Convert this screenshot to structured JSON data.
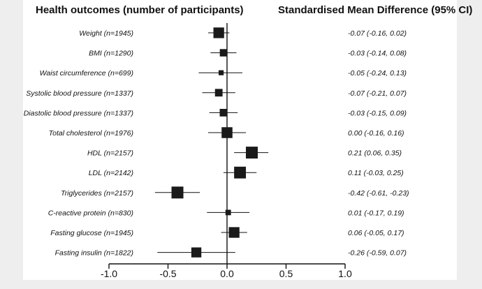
{
  "chart_data": {
    "type": "forest",
    "left_header": "Health outcomes (number of participants)",
    "right_header": "Standardised Mean Difference (95% CI)",
    "xlim": [
      -1.0,
      1.0
    ],
    "xticks": [
      "-1.0",
      "-0.5",
      "0.0",
      "0.5",
      "1.0"
    ],
    "rows": [
      {
        "label": "Weight (n=1945)",
        "n": 1945,
        "smd": -0.07,
        "lo": -0.16,
        "hi": 0.02,
        "ci_text": "-0.07 (-0.16, 0.02)"
      },
      {
        "label": "BMI (n=1290)",
        "n": 1290,
        "smd": -0.03,
        "lo": -0.14,
        "hi": 0.08,
        "ci_text": "-0.03 (-0.14, 0.08)"
      },
      {
        "label": "Waist circumference (n=699)",
        "n": 699,
        "smd": -0.05,
        "lo": -0.24,
        "hi": 0.13,
        "ci_text": "-0.05 (-0.24, 0.13)"
      },
      {
        "label": "Systolic blood pressure (n=1337)",
        "n": 1337,
        "smd": -0.07,
        "lo": -0.21,
        "hi": 0.07,
        "ci_text": "-0.07 (-0.21, 0.07)"
      },
      {
        "label": "Diastolic blood pressure (n=1337)",
        "n": 1337,
        "smd": -0.03,
        "lo": -0.15,
        "hi": 0.09,
        "ci_text": "-0.03 (-0.15, 0.09)"
      },
      {
        "label": "Total cholesterol (n=1976)",
        "n": 1976,
        "smd": 0.0,
        "lo": -0.16,
        "hi": 0.16,
        "ci_text": "0.00 (-0.16, 0.16)"
      },
      {
        "label": "HDL (n=2157)",
        "n": 2157,
        "smd": 0.21,
        "lo": 0.06,
        "hi": 0.35,
        "ci_text": "0.21 (0.06, 0.35)"
      },
      {
        "label": "LDL (n=2142)",
        "n": 2142,
        "smd": 0.11,
        "lo": -0.03,
        "hi": 0.25,
        "ci_text": "0.11 (-0.03, 0.25)"
      },
      {
        "label": "Triglycerides (n=2157)",
        "n": 2157,
        "smd": -0.42,
        "lo": -0.61,
        "hi": -0.23,
        "ci_text": "-0.42 (-0.61, -0.23)"
      },
      {
        "label": "C-reactive protein (n=830)",
        "n": 830,
        "smd": 0.01,
        "lo": -0.17,
        "hi": 0.19,
        "ci_text": "0.01 (-0.17, 0.19)"
      },
      {
        "label": "Fasting glucose (n=1945)",
        "n": 1945,
        "smd": 0.06,
        "lo": -0.05,
        "hi": 0.17,
        "ci_text": "0.06 (-0.05, 0.17)"
      },
      {
        "label": "Fasting insulin (n=1822)",
        "n": 1822,
        "smd": -0.26,
        "lo": -0.59,
        "hi": 0.07,
        "ci_text": "-0.26 (-0.59, 0.07)"
      }
    ]
  }
}
